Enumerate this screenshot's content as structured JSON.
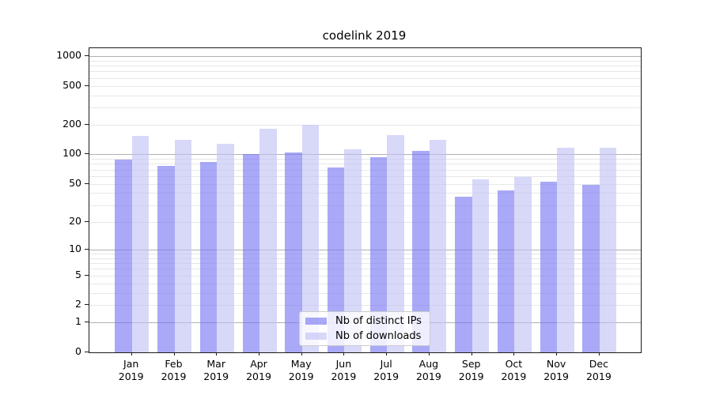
{
  "chart_data": {
    "type": "bar",
    "title": "codelink 2019",
    "categories": [
      "Jan 2019",
      "Feb 2019",
      "Mar 2019",
      "Apr 2019",
      "May 2019",
      "Jun 2019",
      "Jul 2019",
      "Aug 2019",
      "Sep 2019",
      "Oct 2019",
      "Nov 2019",
      "Dec 2019"
    ],
    "series": [
      {
        "name": "Nb of distinct IPs",
        "color": "rgba(116,116,242,0.62)",
        "values": [
          88,
          77,
          84,
          101,
          105,
          73,
          94,
          108,
          37,
          43,
          52,
          49
        ]
      },
      {
        "name": "Nb of downloads",
        "color": "rgba(192,192,245,0.62)",
        "values": [
          156,
          140,
          129,
          184,
          199,
          112,
          157,
          141,
          55,
          59,
          116,
          118
        ]
      }
    ],
    "xlabel": "",
    "ylabel": "",
    "y_scale": "log1p",
    "ylim": [
      0,
      1200
    ],
    "y_tick_values": [
      0,
      1,
      2,
      5,
      10,
      20,
      50,
      100,
      200,
      500,
      1000
    ],
    "grid": {
      "on": true,
      "major_values": [
        1,
        10,
        100,
        1000
      ],
      "minor_values": [
        2,
        3,
        4,
        5,
        6,
        7,
        8,
        9,
        20,
        30,
        40,
        50,
        60,
        70,
        80,
        90,
        200,
        300,
        400,
        500,
        600,
        700,
        800,
        900
      ],
      "major_color": "#b0b0b0",
      "minor_color": "#e7e7e7"
    },
    "legend_position": "lower center, inside plot",
    "colors": {
      "background": "#ffffff",
      "axis": "#1a1a1a",
      "text": "#000000"
    }
  }
}
